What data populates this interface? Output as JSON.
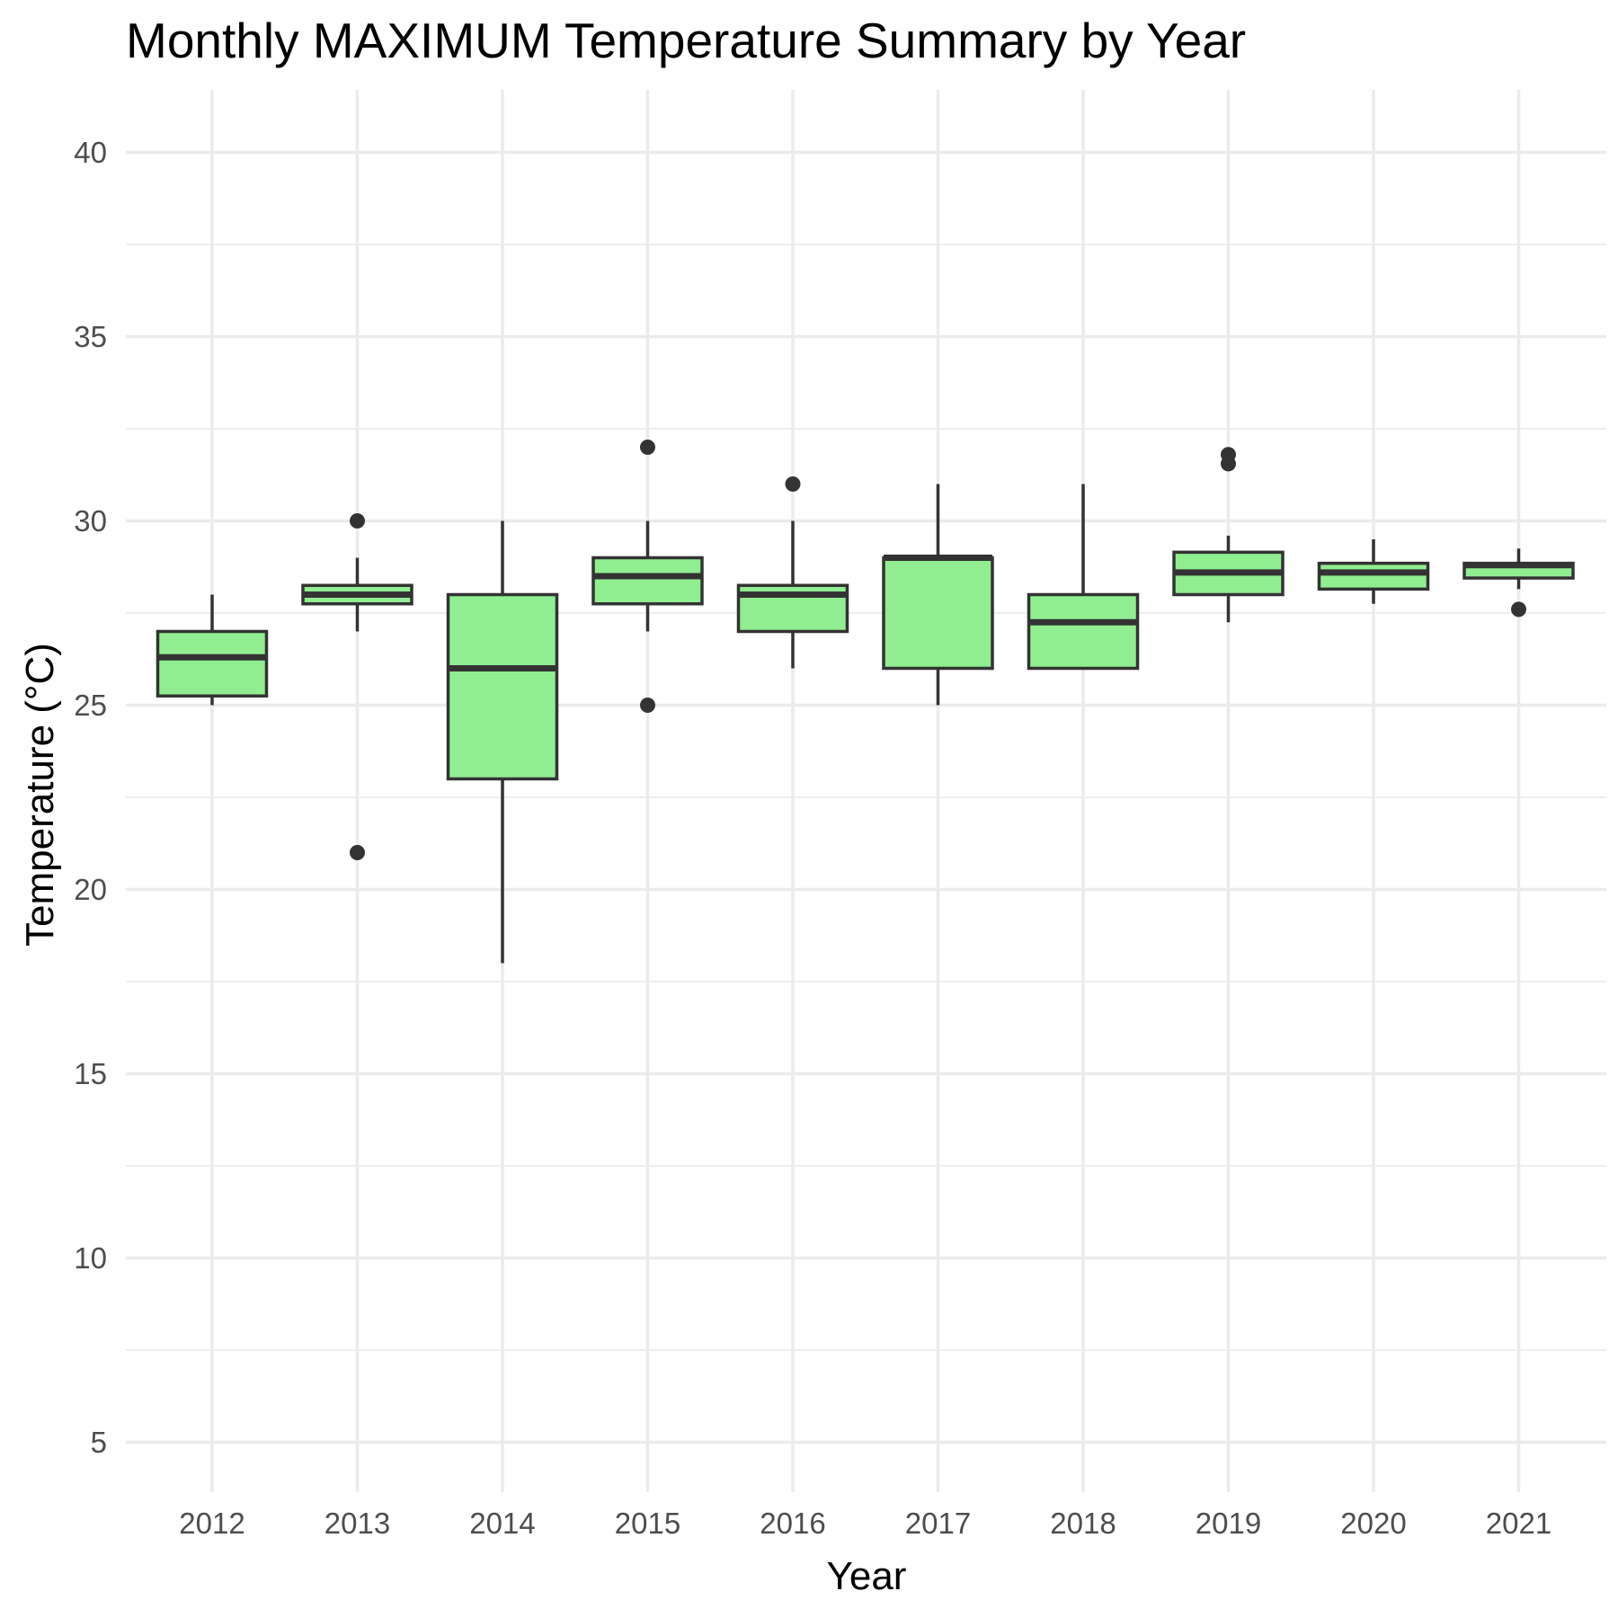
{
  "chart_data": {
    "type": "boxplot",
    "title": "Monthly MAXIMUM Temperature Summary by Year",
    "xlabel": "Year",
    "ylabel": "Temperature (°C)",
    "ylim": [
      3.4,
      41.6
    ],
    "yticks": [
      5,
      10,
      15,
      20,
      25,
      30,
      35,
      40
    ],
    "grid": true,
    "box_fill": "#90EE90",
    "line_color": "#333333",
    "categories": [
      "2012",
      "2013",
      "2014",
      "2015",
      "2016",
      "2017",
      "2018",
      "2019",
      "2020",
      "2021"
    ],
    "boxes": [
      {
        "year": "2012",
        "whisker_low": 25.0,
        "q1": 25.25,
        "median": 26.3,
        "q3": 27.0,
        "whisker_high": 28.0,
        "outliers": []
      },
      {
        "year": "2013",
        "whisker_low": 27.0,
        "q1": 27.75,
        "median": 28.0,
        "q3": 28.25,
        "whisker_high": 29.0,
        "outliers": [
          30.0,
          21.0
        ]
      },
      {
        "year": "2014",
        "whisker_low": 18.0,
        "q1": 23.0,
        "median": 26.0,
        "q3": 28.0,
        "whisker_high": 30.0,
        "outliers": []
      },
      {
        "year": "2015",
        "whisker_low": 27.0,
        "q1": 27.75,
        "median": 28.5,
        "q3": 29.0,
        "whisker_high": 30.0,
        "outliers": [
          32.0,
          25.0
        ]
      },
      {
        "year": "2016",
        "whisker_low": 26.0,
        "q1": 27.0,
        "median": 28.0,
        "q3": 28.25,
        "whisker_high": 30.0,
        "outliers": [
          31.0
        ]
      },
      {
        "year": "2017",
        "whisker_low": 25.0,
        "q1": 26.0,
        "median": 29.0,
        "q3": 29.0,
        "whisker_high": 31.0,
        "outliers": []
      },
      {
        "year": "2018",
        "whisker_low": 26.0,
        "q1": 26.0,
        "median": 27.25,
        "q3": 28.0,
        "whisker_high": 31.0,
        "outliers": []
      },
      {
        "year": "2019",
        "whisker_low": 27.25,
        "q1": 28.0,
        "median": 28.6,
        "q3": 29.15,
        "whisker_high": 29.6,
        "outliers": [
          31.8,
          31.55
        ]
      },
      {
        "year": "2020",
        "whisker_low": 27.75,
        "q1": 28.15,
        "median": 28.6,
        "q3": 28.85,
        "whisker_high": 29.5,
        "outliers": []
      },
      {
        "year": "2021",
        "whisker_low": 28.15,
        "q1": 28.45,
        "median": 28.8,
        "q3": 28.85,
        "whisker_high": 29.25,
        "outliers": [
          27.6
        ]
      }
    ]
  }
}
